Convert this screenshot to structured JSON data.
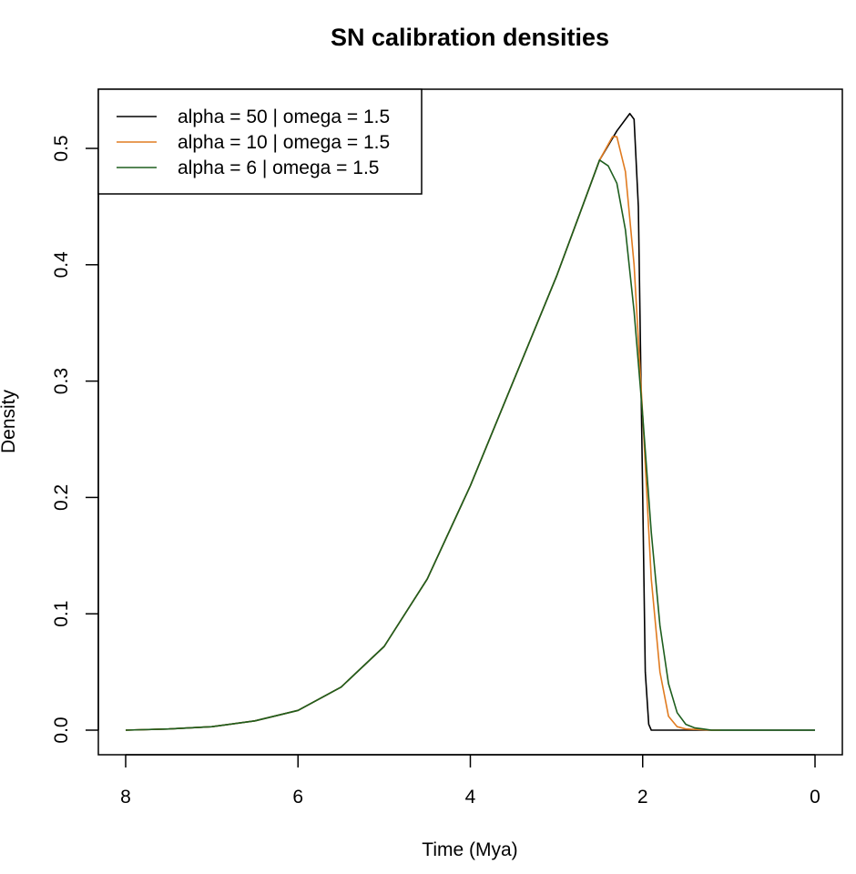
{
  "chart_data": {
    "type": "line",
    "title": "SN calibration densities",
    "xlabel": "Time (Mya)",
    "ylabel": "Density",
    "xlim": [
      8,
      0
    ],
    "ylim": [
      0,
      0.53
    ],
    "x_reversed": true,
    "x_ticks": [
      8,
      6,
      4,
      2,
      0
    ],
    "y_ticks": [
      0.0,
      0.1,
      0.2,
      0.3,
      0.4,
      0.5
    ],
    "grid": false,
    "legend_position": "top-left",
    "series": [
      {
        "name": "alpha = 50 | omega = 1.5",
        "color": "#000000",
        "points": [
          [
            8,
            0
          ],
          [
            7.5,
            0.001
          ],
          [
            7,
            0.003
          ],
          [
            6.5,
            0.008
          ],
          [
            6,
            0.017
          ],
          [
            5.5,
            0.037
          ],
          [
            5,
            0.072
          ],
          [
            4.5,
            0.13
          ],
          [
            4,
            0.21
          ],
          [
            3.5,
            0.3
          ],
          [
            3,
            0.39
          ],
          [
            2.75,
            0.44
          ],
          [
            2.5,
            0.49
          ],
          [
            2.3,
            0.515
          ],
          [
            2.15,
            0.53
          ],
          [
            2.1,
            0.525
          ],
          [
            2.05,
            0.45
          ],
          [
            2.0,
            0.2
          ],
          [
            1.97,
            0.05
          ],
          [
            1.93,
            0.005
          ],
          [
            1.9,
            0.0
          ],
          [
            1.5,
            0
          ],
          [
            1.0,
            0
          ],
          [
            0,
            0
          ]
        ]
      },
      {
        "name": "alpha = 10 | omega = 1.5",
        "color": "#e07b20",
        "points": [
          [
            8,
            0
          ],
          [
            7.5,
            0.001
          ],
          [
            7,
            0.003
          ],
          [
            6.5,
            0.008
          ],
          [
            6,
            0.017
          ],
          [
            5.5,
            0.037
          ],
          [
            5,
            0.072
          ],
          [
            4.5,
            0.13
          ],
          [
            4,
            0.21
          ],
          [
            3.5,
            0.3
          ],
          [
            3,
            0.39
          ],
          [
            2.75,
            0.44
          ],
          [
            2.5,
            0.49
          ],
          [
            2.35,
            0.51
          ],
          [
            2.3,
            0.51
          ],
          [
            2.2,
            0.48
          ],
          [
            2.1,
            0.4
          ],
          [
            2.0,
            0.27
          ],
          [
            1.9,
            0.13
          ],
          [
            1.8,
            0.05
          ],
          [
            1.7,
            0.012
          ],
          [
            1.6,
            0.003
          ],
          [
            1.5,
            0.001
          ],
          [
            1.2,
            0
          ],
          [
            1.1,
            0
          ]
        ]
      },
      {
        "name": "alpha = 6 | omega = 1.5",
        "color": "#1e5e1e",
        "points": [
          [
            8,
            0
          ],
          [
            7.5,
            0.001
          ],
          [
            7,
            0.003
          ],
          [
            6.5,
            0.008
          ],
          [
            6,
            0.017
          ],
          [
            5.5,
            0.037
          ],
          [
            5,
            0.072
          ],
          [
            4.5,
            0.13
          ],
          [
            4,
            0.21
          ],
          [
            3.5,
            0.3
          ],
          [
            3,
            0.39
          ],
          [
            2.75,
            0.44
          ],
          [
            2.6,
            0.47
          ],
          [
            2.5,
            0.49
          ],
          [
            2.4,
            0.485
          ],
          [
            2.3,
            0.47
          ],
          [
            2.2,
            0.43
          ],
          [
            2.1,
            0.36
          ],
          [
            2.0,
            0.27
          ],
          [
            1.9,
            0.17
          ],
          [
            1.8,
            0.09
          ],
          [
            1.7,
            0.04
          ],
          [
            1.6,
            0.015
          ],
          [
            1.5,
            0.005
          ],
          [
            1.4,
            0.002
          ],
          [
            1.3,
            0.001
          ],
          [
            1.2,
            0
          ],
          [
            1.0,
            0
          ],
          [
            0,
            0
          ]
        ]
      }
    ]
  }
}
